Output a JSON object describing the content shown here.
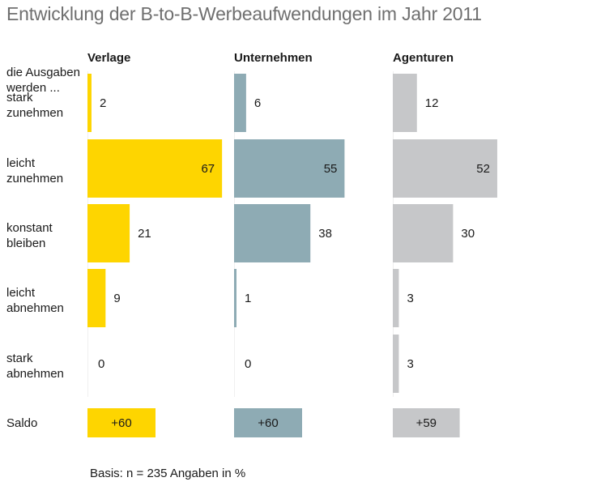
{
  "title": "Entwicklung der B-to-B-Werbeaufwendungen im Jahr 2011",
  "note": "Basis: n = 235 Angaben in %",
  "header_label": [
    "die Ausgaben",
    "werden ..."
  ],
  "chart_data": {
    "type": "bar",
    "orientation": "horizontal",
    "title": "Entwicklung der B-to-B-Werbeaufwendungen im Jahr 2011",
    "unit": "%",
    "categories": [
      [
        "stark",
        "zunehmen"
      ],
      [
        "leicht",
        "zunehmen"
      ],
      [
        "konstant",
        "bleiben"
      ],
      [
        "leicht",
        "abnehmen"
      ],
      [
        "stark",
        "abnehmen"
      ]
    ],
    "series": [
      {
        "name": "Verlage",
        "color": "#fed500",
        "values": [
          2,
          67,
          21,
          9,
          0
        ],
        "saldo": "+60",
        "saldo_value": 60
      },
      {
        "name": "Unternehmen",
        "color": "#8eabb4",
        "values": [
          6,
          55,
          38,
          1,
          0
        ],
        "saldo": "+60",
        "saldo_value": 60
      },
      {
        "name": "Agenturen",
        "color": "#c6c7c9",
        "values": [
          12,
          52,
          30,
          3,
          3
        ],
        "saldo": "+59",
        "saldo_value": 59
      }
    ],
    "saldo_label": "Saldo",
    "xlim": [
      0,
      70
    ],
    "grid": false,
    "legend": "none"
  }
}
